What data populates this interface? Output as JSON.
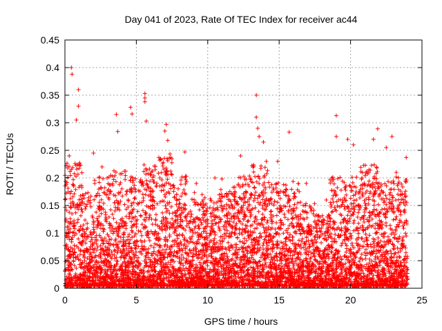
{
  "chart_data": {
    "type": "scatter",
    "title": "Day 041 of 2023, Rate Of TEC Index for receiver ac44",
    "xlabel": "GPS time / hours",
    "ylabel": "ROTI / TECUs",
    "xlim": [
      0,
      25
    ],
    "ylim": [
      0,
      0.45
    ],
    "x_ticks": [
      "0",
      "5",
      "10",
      "15",
      "20",
      "25"
    ],
    "y_ticks": [
      "0",
      "0.05",
      "0.1",
      "0.15",
      "0.2",
      "0.25",
      "0.3",
      "0.35",
      "0.4",
      "0.45"
    ],
    "grid": true,
    "marker": "+",
    "color": "#ff0000",
    "series": [
      {
        "points": [
          [
            0.45,
            0.4
          ],
          [
            0.5,
            0.388
          ],
          [
            0.95,
            0.36
          ],
          [
            0.95,
            0.33
          ],
          [
            0.8,
            0.305
          ],
          [
            5.6,
            0.353
          ],
          [
            5.6,
            0.345
          ],
          [
            5.6,
            0.338
          ],
          [
            5.7,
            0.303
          ],
          [
            4.6,
            0.328
          ],
          [
            4.7,
            0.316
          ],
          [
            3.6,
            0.315
          ],
          [
            3.7,
            0.284
          ],
          [
            7.1,
            0.297
          ],
          [
            7.0,
            0.285
          ],
          [
            7.2,
            0.268
          ],
          [
            8.4,
            0.247
          ],
          [
            13.4,
            0.35
          ],
          [
            13.4,
            0.31
          ],
          [
            13.5,
            0.29
          ],
          [
            13.6,
            0.275
          ],
          [
            13.9,
            0.265
          ],
          [
            19.0,
            0.313
          ],
          [
            19.0,
            0.275
          ],
          [
            19.8,
            0.27
          ],
          [
            20.2,
            0.26
          ],
          [
            21.9,
            0.289
          ],
          [
            21.6,
            0.27
          ],
          [
            22.9,
            0.275
          ],
          [
            22.5,
            0.255
          ],
          [
            15.7,
            0.283
          ],
          [
            12.3,
            0.24
          ],
          [
            23.9,
            0.237
          ],
          [
            14.1,
            0.23
          ],
          [
            0.3,
            0.24
          ],
          [
            1.0,
            0.225
          ],
          [
            2.0,
            0.245
          ],
          [
            2.6,
            0.22
          ],
          [
            9.2,
            0.19
          ],
          [
            10.5,
            0.2
          ],
          [
            11.0,
            0.198
          ],
          [
            14.9,
            0.23
          ],
          [
            16.9,
            0.19
          ],
          [
            18.3,
            0.16
          ],
          [
            20.8,
            0.2
          ],
          [
            23.2,
            0.21
          ]
        ]
      }
    ],
    "bands": [
      {
        "x0": 0.0,
        "x1": 1.2,
        "h": 0.23
      },
      {
        "x0": 1.2,
        "x1": 2.0,
        "h": 0.17
      },
      {
        "x0": 2.0,
        "x1": 3.2,
        "h": 0.2
      },
      {
        "x0": 3.2,
        "x1": 4.3,
        "h": 0.21
      },
      {
        "x0": 4.3,
        "x1": 5.4,
        "h": 0.2
      },
      {
        "x0": 5.4,
        "x1": 6.5,
        "h": 0.22
      },
      {
        "x0": 6.5,
        "x1": 7.5,
        "h": 0.24
      },
      {
        "x0": 7.5,
        "x1": 8.7,
        "h": 0.2
      },
      {
        "x0": 8.7,
        "x1": 9.7,
        "h": 0.17
      },
      {
        "x0": 9.7,
        "x1": 10.8,
        "h": 0.16
      },
      {
        "x0": 10.8,
        "x1": 12.0,
        "h": 0.18
      },
      {
        "x0": 12.0,
        "x1": 13.0,
        "h": 0.2
      },
      {
        "x0": 13.0,
        "x1": 14.2,
        "h": 0.22
      },
      {
        "x0": 14.2,
        "x1": 15.5,
        "h": 0.19
      },
      {
        "x0": 15.5,
        "x1": 16.5,
        "h": 0.19
      },
      {
        "x0": 16.5,
        "x1": 17.5,
        "h": 0.15
      },
      {
        "x0": 17.5,
        "x1": 18.5,
        "h": 0.13
      },
      {
        "x0": 18.5,
        "x1": 19.6,
        "h": 0.2
      },
      {
        "x0": 19.6,
        "x1": 20.7,
        "h": 0.2
      },
      {
        "x0": 20.7,
        "x1": 21.9,
        "h": 0.22
      },
      {
        "x0": 21.9,
        "x1": 22.9,
        "h": 0.19
      },
      {
        "x0": 22.9,
        "x1": 24.0,
        "h": 0.2
      }
    ]
  }
}
